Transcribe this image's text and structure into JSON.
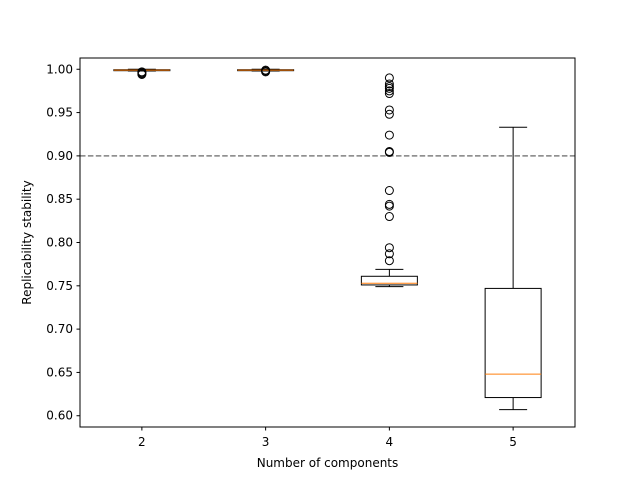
{
  "chart_data": {
    "type": "box",
    "xlabel": "Number of components",
    "ylabel": "Replicability stability",
    "categories": [
      "2",
      "3",
      "4",
      "5"
    ],
    "ylim": [
      0.587,
      1.013
    ],
    "yticks": [
      "0.60",
      "0.65",
      "0.70",
      "0.75",
      "0.80",
      "0.85",
      "0.90",
      "0.95",
      "1.00"
    ],
    "reference_line": {
      "y": 0.9,
      "style": "dashed",
      "color": "#808080"
    },
    "box_color": "#000000",
    "median_color": "#ff7f0e",
    "boxes": [
      {
        "category": "2",
        "whisker_low": 0.998,
        "q1": 0.9985,
        "median": 0.999,
        "q3": 0.9995,
        "whisker_high": 1.0,
        "outliers": [
          0.994,
          0.995,
          0.996,
          0.997
        ]
      },
      {
        "category": "3",
        "whisker_low": 0.998,
        "q1": 0.9985,
        "median": 0.999,
        "q3": 0.9995,
        "whisker_high": 1.0,
        "outliers": [
          0.997,
          0.998,
          0.999
        ]
      },
      {
        "category": "4",
        "whisker_low": 0.749,
        "q1": 0.751,
        "median": 0.753,
        "q3": 0.761,
        "whisker_high": 0.769,
        "outliers": [
          0.779,
          0.787,
          0.794,
          0.83,
          0.842,
          0.844,
          0.86,
          0.904,
          0.905,
          0.924,
          0.948,
          0.953,
          0.972,
          0.975,
          0.978,
          0.98,
          0.983,
          0.99
        ]
      },
      {
        "category": "5",
        "whisker_low": 0.607,
        "q1": 0.621,
        "median": 0.648,
        "q3": 0.747,
        "whisker_high": 0.933,
        "outliers": []
      }
    ]
  }
}
